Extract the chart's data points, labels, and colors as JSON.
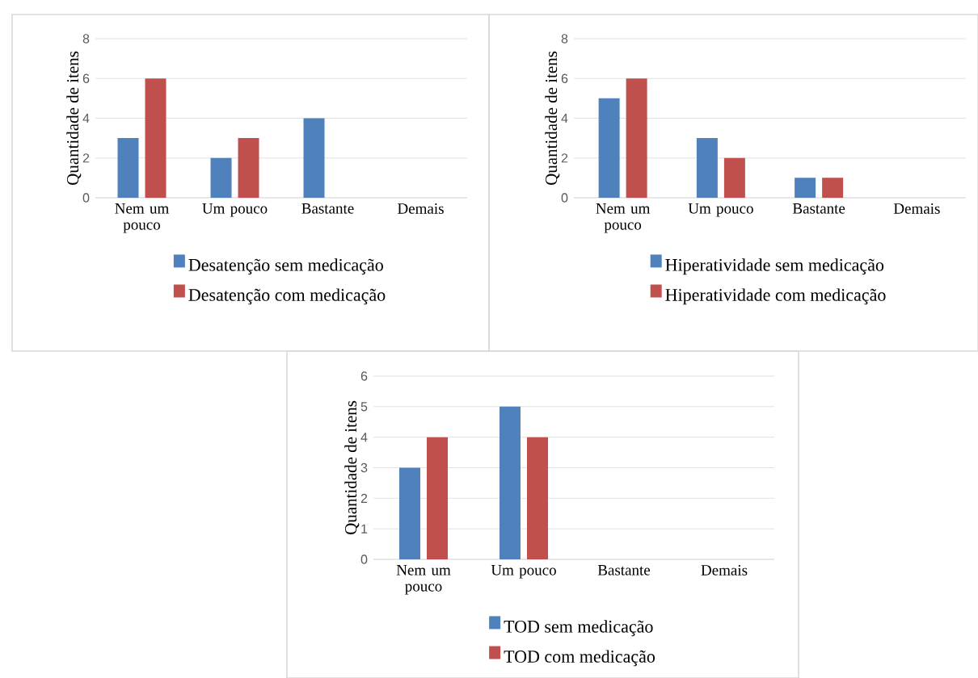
{
  "chart_data": [
    {
      "type": "bar",
      "categories": [
        "Nem um pouco",
        "Um pouco",
        "Bastante",
        "Demais"
      ],
      "ylabel": "Quantidade de itens",
      "ylim": [
        0,
        8
      ],
      "yticks": [
        0,
        2,
        4,
        6,
        8
      ],
      "grid": "y",
      "legend": "bottom",
      "series": [
        {
          "name": "Desatenção sem medicação",
          "color": "#4f81bd",
          "values": [
            3,
            2,
            4,
            0
          ]
        },
        {
          "name": "Desatenção com medicação",
          "color": "#c0504d",
          "values": [
            6,
            3,
            0,
            0
          ]
        }
      ]
    },
    {
      "type": "bar",
      "categories": [
        "Nem um pouco",
        "Um pouco",
        "Bastante",
        "Demais"
      ],
      "ylabel": "Quantidade de itens",
      "ylim": [
        0,
        8
      ],
      "yticks": [
        0,
        2,
        4,
        6,
        8
      ],
      "grid": "y",
      "legend": "bottom",
      "series": [
        {
          "name": "Hiperatividade sem medicação",
          "color": "#4f81bd",
          "values": [
            5,
            3,
            1,
            0
          ]
        },
        {
          "name": "Hiperatividade com medicação",
          "color": "#c0504d",
          "values": [
            6,
            2,
            1,
            0
          ]
        }
      ]
    },
    {
      "type": "bar",
      "categories": [
        "Nem um pouco",
        "Um pouco",
        "Bastante",
        "Demais"
      ],
      "ylabel": "Quantidade de itens",
      "ylim": [
        0,
        6
      ],
      "yticks": [
        0,
        1,
        2,
        3,
        4,
        5,
        6
      ],
      "grid": "y",
      "legend": "bottom",
      "series": [
        {
          "name": "TOD sem medicação",
          "color": "#4f81bd",
          "values": [
            3,
            5,
            0,
            0
          ]
        },
        {
          "name": "TOD com medicação",
          "color": "#c0504d",
          "values": [
            4,
            4,
            0,
            0
          ]
        }
      ]
    }
  ]
}
